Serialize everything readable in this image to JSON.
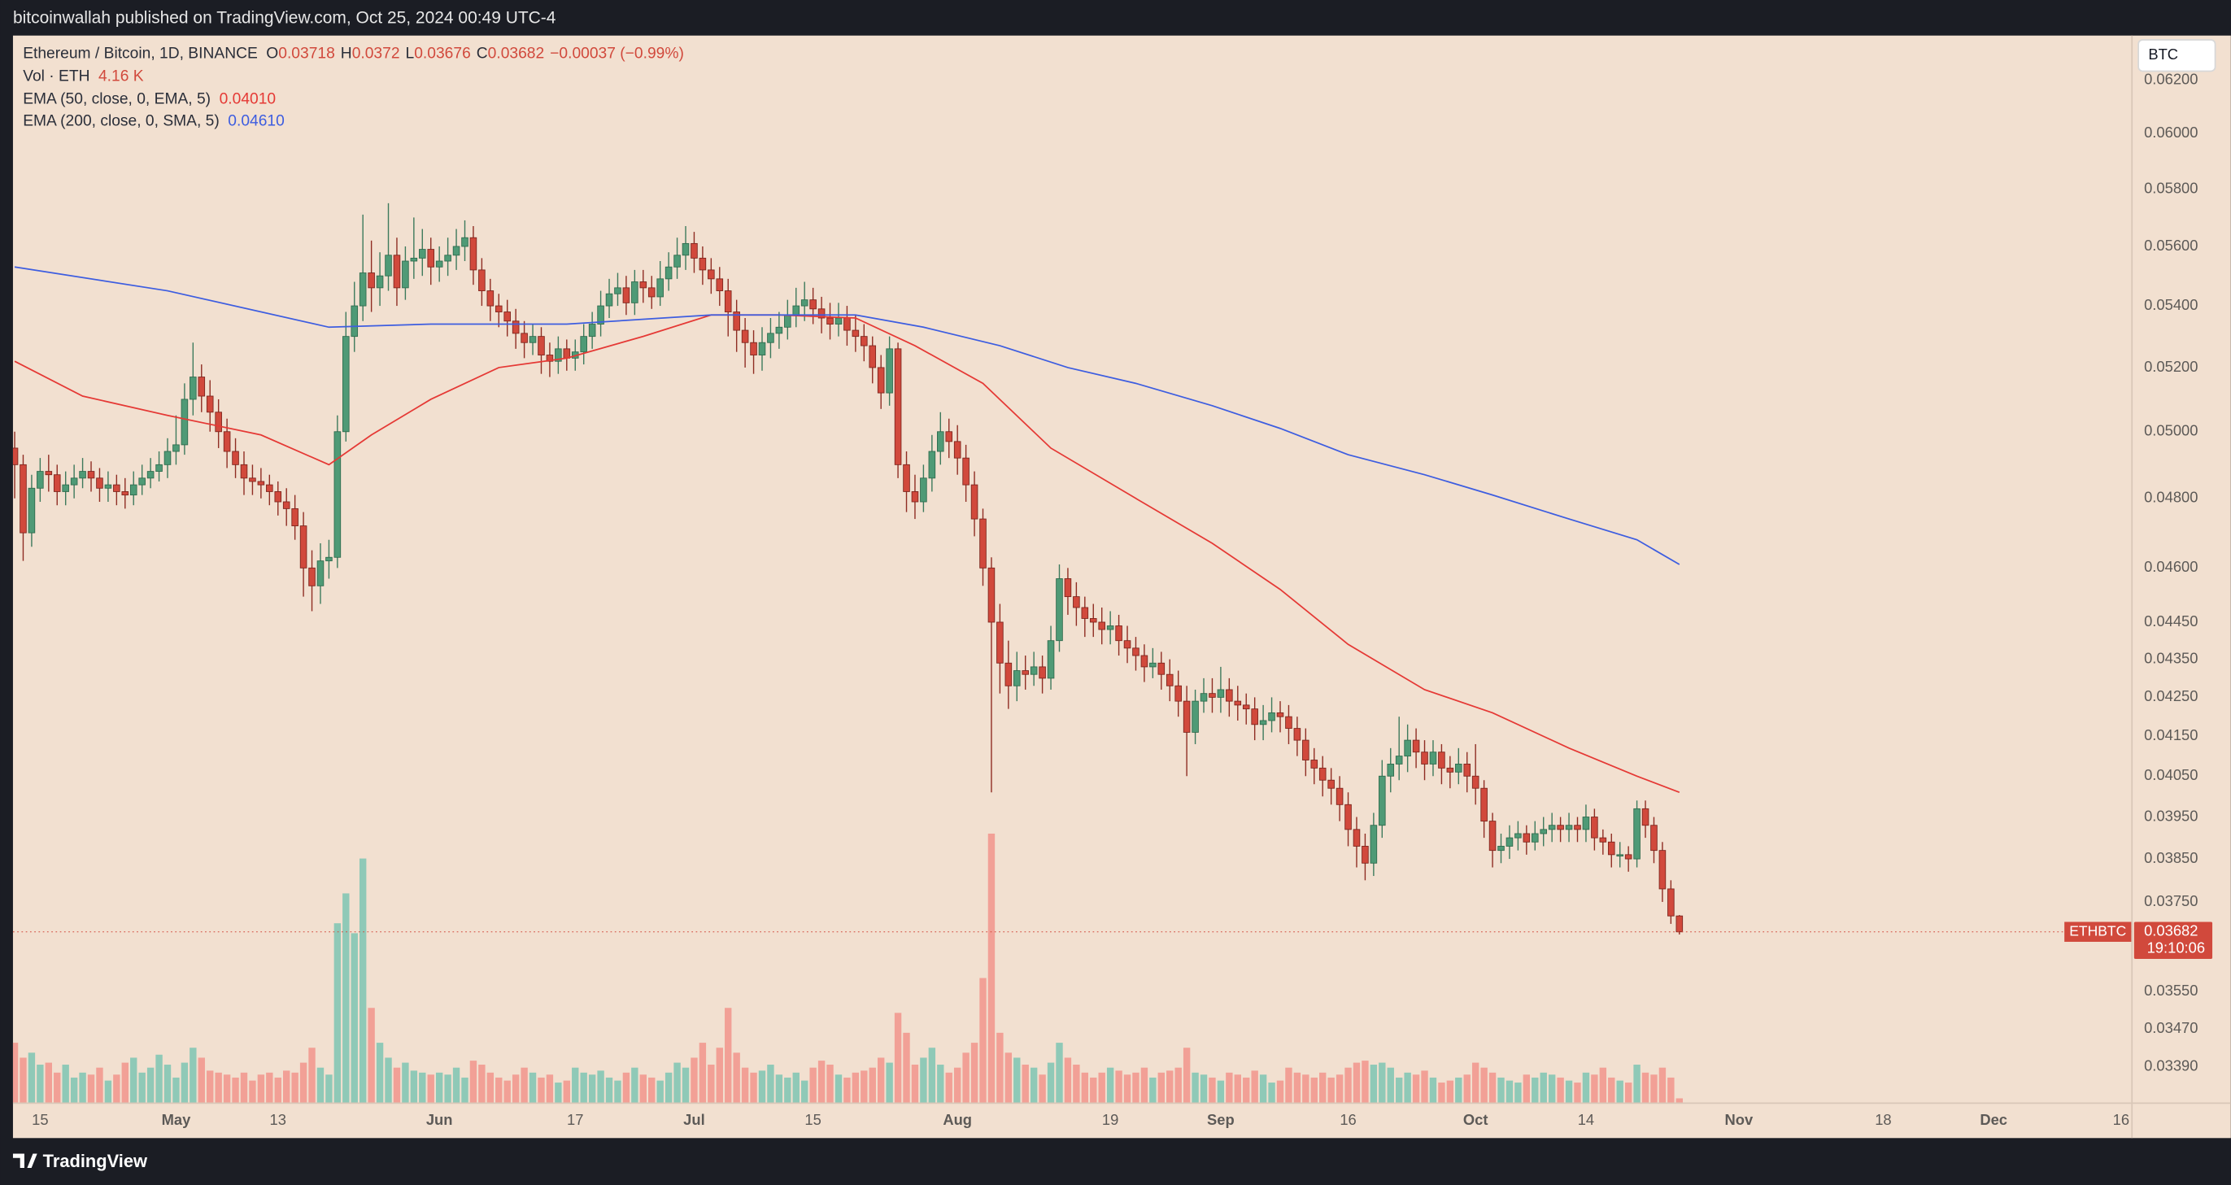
{
  "header": {
    "publisher": "bitcoinwallah published on TradingView.com, Oct 25, 2024 00:49 UTC-4"
  },
  "chart_data": {
    "type": "candlestick",
    "symbol_title": "Ethereum / Bitcoin, 1D, BINANCE",
    "ohlc_letters": [
      "O",
      "H",
      "L",
      "C"
    ],
    "change": "−0.00037 (−0.99%)",
    "volume_title": "Vol · ETH",
    "volume_label": "4.16 K",
    "currency": "BTC",
    "symbol": "ETHBTC",
    "countdown": "19:10:06",
    "up_color": "#4f9a76",
    "down_color": "#d1493c",
    "volume_up_color": "#8fc9b7",
    "volume_down_color": "#f2a096",
    "log_scale": true,
    "grid": false,
    "ylim": [
      0.03317,
      0.06371
    ],
    "xlim": [
      -0.2,
      249.2
    ],
    "yticks": [
      {
        "value": 0.062,
        "label": "0.06200"
      },
      {
        "value": 0.06,
        "label": "0.06000"
      },
      {
        "value": 0.058,
        "label": "0.05800"
      },
      {
        "value": 0.056,
        "label": "0.05600"
      },
      {
        "value": 0.054,
        "label": "0.05400"
      },
      {
        "value": 0.052,
        "label": "0.05200"
      },
      {
        "value": 0.05,
        "label": "0.05000"
      },
      {
        "value": 0.048,
        "label": "0.04800"
      },
      {
        "value": 0.046,
        "label": "0.04600"
      },
      {
        "value": 0.0445,
        "label": "0.04450"
      },
      {
        "value": 0.0435,
        "label": "0.04350"
      },
      {
        "value": 0.0425,
        "label": "0.04250"
      },
      {
        "value": 0.0415,
        "label": "0.04150"
      },
      {
        "value": 0.0405,
        "label": "0.04050"
      },
      {
        "value": 0.0395,
        "label": "0.03950"
      },
      {
        "value": 0.0385,
        "label": "0.03850"
      },
      {
        "value": 0.0375,
        "label": "0.03750"
      },
      {
        "value": 0.0355,
        "label": "0.03550"
      },
      {
        "value": 0.0347,
        "label": "0.03470"
      },
      {
        "value": 0.0339,
        "label": "0.03390"
      }
    ],
    "xticks": [
      {
        "value": 3,
        "label": "15"
      },
      {
        "value": 19,
        "label": "May"
      },
      {
        "value": 31,
        "label": "13"
      },
      {
        "value": 50,
        "label": "Jun"
      },
      {
        "value": 66,
        "label": "17"
      },
      {
        "value": 80,
        "label": "Jul"
      },
      {
        "value": 94,
        "label": "15"
      },
      {
        "value": 111,
        "label": "Aug"
      },
      {
        "value": 129,
        "label": "19"
      },
      {
        "value": 142,
        "label": "Sep"
      },
      {
        "value": 157,
        "label": "16"
      },
      {
        "value": 172,
        "label": "Oct"
      },
      {
        "value": 185,
        "label": "14"
      },
      {
        "value": 203,
        "label": "Nov"
      },
      {
        "value": 220,
        "label": "18"
      },
      {
        "value": 233,
        "label": "Dec"
      },
      {
        "value": 248,
        "label": "16"
      }
    ],
    "open": [
      0.0495,
      0.049,
      0.047,
      0.0483,
      0.0488,
      0.0487,
      0.0482,
      0.0484,
      0.0486,
      0.0488,
      0.0486,
      0.0483,
      0.0484,
      0.0482,
      0.0481,
      0.0484,
      0.0486,
      0.0488,
      0.049,
      0.0494,
      0.0496,
      0.051,
      0.0517,
      0.0511,
      0.0506,
      0.05,
      0.0494,
      0.049,
      0.0486,
      0.0485,
      0.0484,
      0.0482,
      0.0479,
      0.0477,
      0.0472,
      0.046,
      0.0455,
      0.0462,
      0.0463,
      0.05,
      0.053,
      0.054,
      0.0551,
      0.0546,
      0.055,
      0.0557,
      0.0546,
      0.0555,
      0.0556,
      0.0559,
      0.0553,
      0.0555,
      0.0557,
      0.056,
      0.0563,
      0.0552,
      0.0545,
      0.054,
      0.0538,
      0.0535,
      0.0531,
      0.0528,
      0.053,
      0.0524,
      0.0522,
      0.0526,
      0.0523,
      0.0525,
      0.053,
      0.0534,
      0.054,
      0.0544,
      0.0546,
      0.0541,
      0.0548,
      0.0546,
      0.0543,
      0.0549,
      0.0553,
      0.0557,
      0.0561,
      0.0556,
      0.0552,
      0.0549,
      0.0545,
      0.0538,
      0.0532,
      0.0528,
      0.0524,
      0.0528,
      0.0531,
      0.0533,
      0.0537,
      0.054,
      0.0542,
      0.0539,
      0.0536,
      0.0534,
      0.0536,
      0.0532,
      0.053,
      0.0527,
      0.052,
      0.0512,
      0.0526,
      0.049,
      0.0482,
      0.0479,
      0.0486,
      0.0494,
      0.05,
      0.0497,
      0.0492,
      0.0484,
      0.0474,
      0.046,
      0.0445,
      0.0434,
      0.0428,
      0.0432,
      0.0431,
      0.0433,
      0.043,
      0.044,
      0.0457,
      0.0452,
      0.0449,
      0.0446,
      0.0445,
      0.0443,
      0.0444,
      0.044,
      0.0438,
      0.0436,
      0.0433,
      0.0434,
      0.0431,
      0.0428,
      0.0424,
      0.0416,
      0.0424,
      0.0426,
      0.0425,
      0.0427,
      0.0424,
      0.0423,
      0.0422,
      0.0418,
      0.0419,
      0.0421,
      0.042,
      0.0417,
      0.0414,
      0.0409,
      0.0407,
      0.0404,
      0.0402,
      0.0398,
      0.0392,
      0.0388,
      0.0384,
      0.0393,
      0.0405,
      0.0408,
      0.041,
      0.0414,
      0.0411,
      0.0408,
      0.0411,
      0.0407,
      0.0406,
      0.0408,
      0.0405,
      0.0402,
      0.0394,
      0.0387,
      0.0388,
      0.039,
      0.0391,
      0.0389,
      0.0391,
      0.0392,
      0.0393,
      0.0392,
      0.0393,
      0.0392,
      0.0395,
      0.039,
      0.0389,
      0.0386,
      0.0386,
      0.0385,
      0.0397,
      0.0393,
      0.0387,
      0.0378,
      0.03718
    ],
    "high": [
      0.05,
      0.0493,
      0.0487,
      0.0492,
      0.0493,
      0.049,
      0.0488,
      0.049,
      0.0492,
      0.0491,
      0.0489,
      0.0488,
      0.0487,
      0.0486,
      0.0488,
      0.049,
      0.0492,
      0.0494,
      0.0498,
      0.0505,
      0.0515,
      0.0528,
      0.0521,
      0.0516,
      0.051,
      0.0504,
      0.0498,
      0.0494,
      0.049,
      0.0489,
      0.0487,
      0.0485,
      0.0483,
      0.0481,
      0.0476,
      0.0465,
      0.0467,
      0.0468,
      0.0505,
      0.0538,
      0.0548,
      0.0571,
      0.0562,
      0.0558,
      0.0575,
      0.0563,
      0.056,
      0.057,
      0.0566,
      0.0563,
      0.056,
      0.0563,
      0.0566,
      0.0569,
      0.0567,
      0.0556,
      0.0549,
      0.0544,
      0.0542,
      0.0539,
      0.0535,
      0.0534,
      0.0533,
      0.0528,
      0.053,
      0.0529,
      0.0529,
      0.0534,
      0.0538,
      0.0545,
      0.0549,
      0.0551,
      0.055,
      0.0552,
      0.0552,
      0.055,
      0.0555,
      0.0558,
      0.0563,
      0.0567,
      0.0565,
      0.056,
      0.0556,
      0.0553,
      0.0549,
      0.0542,
      0.0536,
      0.0532,
      0.0533,
      0.0536,
      0.0538,
      0.0542,
      0.0546,
      0.0548,
      0.0546,
      0.0543,
      0.0541,
      0.0541,
      0.054,
      0.0537,
      0.0534,
      0.053,
      0.0524,
      0.053,
      0.0528,
      0.0494,
      0.0487,
      0.049,
      0.0499,
      0.0506,
      0.0504,
      0.0502,
      0.0496,
      0.0488,
      0.0477,
      0.0463,
      0.045,
      0.044,
      0.0437,
      0.0436,
      0.0437,
      0.0436,
      0.0444,
      0.0461,
      0.046,
      0.0456,
      0.0452,
      0.045,
      0.0449,
      0.0448,
      0.0447,
      0.0444,
      0.0441,
      0.0439,
      0.0438,
      0.0437,
      0.0435,
      0.0432,
      0.0428,
      0.0427,
      0.043,
      0.043,
      0.0433,
      0.043,
      0.0428,
      0.0426,
      0.0425,
      0.0423,
      0.0425,
      0.0424,
      0.0423,
      0.042,
      0.0417,
      0.0412,
      0.041,
      0.0407,
      0.0405,
      0.0401,
      0.0395,
      0.0391,
      0.0396,
      0.0409,
      0.0412,
      0.042,
      0.0418,
      0.0417,
      0.0414,
      0.0414,
      0.0413,
      0.041,
      0.0412,
      0.0411,
      0.0413,
      0.0404,
      0.0396,
      0.0391,
      0.0393,
      0.0394,
      0.0393,
      0.0394,
      0.0395,
      0.0396,
      0.0395,
      0.0396,
      0.0395,
      0.0398,
      0.0397,
      0.0392,
      0.0391,
      0.0389,
      0.0388,
      0.0399,
      0.0399,
      0.0395,
      0.0389,
      0.038,
      0.0372
    ],
    "low": [
      0.048,
      0.0462,
      0.0466,
      0.0479,
      0.0482,
      0.0478,
      0.0478,
      0.048,
      0.0483,
      0.0482,
      0.0479,
      0.0479,
      0.0478,
      0.0477,
      0.0478,
      0.0481,
      0.0483,
      0.0485,
      0.0486,
      0.049,
      0.0493,
      0.0505,
      0.0506,
      0.05,
      0.0495,
      0.0489,
      0.0486,
      0.0481,
      0.0481,
      0.048,
      0.0478,
      0.0475,
      0.0472,
      0.0468,
      0.0452,
      0.0448,
      0.045,
      0.0457,
      0.046,
      0.0497,
      0.0525,
      0.0535,
      0.0538,
      0.054,
      0.0545,
      0.054,
      0.0542,
      0.0549,
      0.055,
      0.0547,
      0.0548,
      0.055,
      0.0552,
      0.0555,
      0.0547,
      0.054,
      0.0535,
      0.0533,
      0.053,
      0.0526,
      0.0523,
      0.0524,
      0.0518,
      0.0517,
      0.0518,
      0.0519,
      0.0519,
      0.0521,
      0.0526,
      0.053,
      0.0536,
      0.054,
      0.0537,
      0.0537,
      0.0541,
      0.0539,
      0.054,
      0.0545,
      0.0549,
      0.0552,
      0.0551,
      0.0547,
      0.0544,
      0.054,
      0.053,
      0.0525,
      0.052,
      0.0518,
      0.0519,
      0.0523,
      0.0526,
      0.0529,
      0.0533,
      0.0535,
      0.0534,
      0.0531,
      0.0529,
      0.053,
      0.0527,
      0.0525,
      0.0522,
      0.0515,
      0.0507,
      0.0508,
      0.0486,
      0.0476,
      0.0474,
      0.0476,
      0.0482,
      0.049,
      0.0492,
      0.0487,
      0.0479,
      0.0469,
      0.0455,
      0.0401,
      0.0426,
      0.0422,
      0.0424,
      0.0427,
      0.0428,
      0.0426,
      0.0427,
      0.0437,
      0.0447,
      0.0444,
      0.0441,
      0.0441,
      0.0439,
      0.0439,
      0.0436,
      0.0434,
      0.0432,
      0.0429,
      0.043,
      0.0427,
      0.0424,
      0.042,
      0.0405,
      0.0413,
      0.0421,
      0.0421,
      0.0421,
      0.042,
      0.0419,
      0.0418,
      0.0414,
      0.0414,
      0.0416,
      0.0416,
      0.0413,
      0.041,
      0.0405,
      0.0403,
      0.04,
      0.0398,
      0.0394,
      0.0388,
      0.0383,
      0.038,
      0.0381,
      0.039,
      0.0401,
      0.0404,
      0.0406,
      0.0407,
      0.0404,
      0.0405,
      0.0403,
      0.0402,
      0.0403,
      0.0401,
      0.0398,
      0.039,
      0.0383,
      0.0384,
      0.0385,
      0.0387,
      0.0386,
      0.0387,
      0.0388,
      0.0389,
      0.0389,
      0.0389,
      0.0389,
      0.0389,
      0.0387,
      0.0386,
      0.0383,
      0.0383,
      0.0382,
      0.0383,
      0.039,
      0.0384,
      0.0375,
      0.037,
      0.03676
    ],
    "close": [
      0.049,
      0.047,
      0.0483,
      0.0488,
      0.0487,
      0.0482,
      0.0484,
      0.0486,
      0.0488,
      0.0486,
      0.0483,
      0.0484,
      0.0482,
      0.0481,
      0.0484,
      0.0486,
      0.0488,
      0.049,
      0.0494,
      0.0496,
      0.051,
      0.0517,
      0.0511,
      0.0506,
      0.05,
      0.0494,
      0.049,
      0.0486,
      0.0485,
      0.0484,
      0.0482,
      0.0479,
      0.0477,
      0.0472,
      0.046,
      0.0455,
      0.0462,
      0.0463,
      0.05,
      0.053,
      0.054,
      0.0551,
      0.0546,
      0.055,
      0.0557,
      0.0546,
      0.0555,
      0.0556,
      0.0559,
      0.0553,
      0.0555,
      0.0557,
      0.056,
      0.0563,
      0.0552,
      0.0545,
      0.054,
      0.0538,
      0.0535,
      0.0531,
      0.0528,
      0.053,
      0.0524,
      0.0522,
      0.0526,
      0.0523,
      0.0525,
      0.053,
      0.0534,
      0.054,
      0.0544,
      0.0546,
      0.0541,
      0.0548,
      0.0546,
      0.0543,
      0.0549,
      0.0553,
      0.0557,
      0.0561,
      0.0556,
      0.0552,
      0.0549,
      0.0545,
      0.0538,
      0.0532,
      0.0528,
      0.0524,
      0.0528,
      0.0531,
      0.0533,
      0.0537,
      0.054,
      0.0542,
      0.0539,
      0.0536,
      0.0534,
      0.0536,
      0.0532,
      0.053,
      0.0527,
      0.052,
      0.0512,
      0.0526,
      0.049,
      0.0482,
      0.0479,
      0.0486,
      0.0494,
      0.05,
      0.0497,
      0.0492,
      0.0484,
      0.0474,
      0.046,
      0.0445,
      0.0434,
      0.0428,
      0.0432,
      0.0431,
      0.0433,
      0.043,
      0.044,
      0.0457,
      0.0452,
      0.0449,
      0.0446,
      0.0445,
      0.0443,
      0.0444,
      0.044,
      0.0438,
      0.0436,
      0.0433,
      0.0434,
      0.0431,
      0.0428,
      0.0424,
      0.0416,
      0.0424,
      0.0426,
      0.0425,
      0.0427,
      0.0424,
      0.0423,
      0.0422,
      0.0418,
      0.0419,
      0.0421,
      0.042,
      0.0417,
      0.0414,
      0.0409,
      0.0407,
      0.0404,
      0.0402,
      0.0398,
      0.0392,
      0.0388,
      0.0384,
      0.0393,
      0.0405,
      0.0408,
      0.041,
      0.0414,
      0.0411,
      0.0408,
      0.0411,
      0.0407,
      0.0406,
      0.0408,
      0.0405,
      0.0402,
      0.0394,
      0.0387,
      0.0388,
      0.039,
      0.0391,
      0.0389,
      0.0391,
      0.0392,
      0.0393,
      0.0392,
      0.0393,
      0.0392,
      0.0395,
      0.039,
      0.0389,
      0.0386,
      0.0386,
      0.0385,
      0.0397,
      0.0393,
      0.0387,
      0.0378,
      0.03718,
      0.03682
    ],
    "volume": [
      60,
      45,
      50,
      38,
      40,
      30,
      38,
      25,
      30,
      28,
      35,
      22,
      28,
      40,
      45,
      30,
      35,
      48,
      38,
      25,
      40,
      55,
      45,
      32,
      30,
      28,
      25,
      30,
      22,
      28,
      30,
      25,
      32,
      30,
      40,
      55,
      35,
      28,
      180,
      210,
      170,
      245,
      95,
      60,
      45,
      35,
      40,
      32,
      30,
      28,
      30,
      28,
      35,
      25,
      42,
      38,
      30,
      25,
      22,
      28,
      35,
      30,
      25,
      28,
      20,
      22,
      35,
      30,
      28,
      32,
      25,
      22,
      30,
      35,
      28,
      25,
      22,
      30,
      40,
      35,
      45,
      60,
      38,
      55,
      95,
      50,
      35,
      30,
      32,
      38,
      28,
      25,
      30,
      22,
      35,
      42,
      38,
      28,
      25,
      30,
      32,
      35,
      45,
      40,
      90,
      70,
      38,
      45,
      55,
      38,
      30,
      35,
      50,
      60,
      125,
      270,
      70,
      50,
      45,
      38,
      35,
      28,
      40,
      60,
      45,
      38,
      30,
      25,
      30,
      35,
      32,
      28,
      30,
      35,
      25,
      30,
      32,
      35,
      55,
      30,
      28,
      25,
      22,
      30,
      28,
      25,
      32,
      28,
      20,
      22,
      35,
      30,
      28,
      25,
      30,
      25,
      28,
      35,
      40,
      42,
      38,
      40,
      35,
      25,
      30,
      28,
      32,
      25,
      20,
      22,
      25,
      28,
      40,
      35,
      30,
      25,
      22,
      20,
      28,
      25,
      30,
      28,
      25,
      22,
      20,
      30,
      28,
      35,
      25,
      22,
      20,
      38,
      30,
      28,
      35,
      25,
      4.16
    ],
    "indicators": [
      {
        "name": "EMA (50, close, 0, EMA, 5)",
        "value_label": "0.04010",
        "color": "#e53935",
        "x": [
          0,
          8,
          18,
          29,
          37,
          42,
          49,
          57,
          65,
          74,
          82,
          90,
          99,
          106,
          114,
          122,
          132,
          141,
          149,
          157,
          166,
          174,
          183,
          191,
          196
        ],
        "values": [
          0.0522,
          0.0511,
          0.0505,
          0.0499,
          0.049,
          0.0499,
          0.051,
          0.052,
          0.0523,
          0.053,
          0.0537,
          0.0537,
          0.0536,
          0.0527,
          0.0515,
          0.0495,
          0.048,
          0.0467,
          0.0454,
          0.0439,
          0.0427,
          0.0421,
          0.0412,
          0.0405,
          0.0401
        ]
      },
      {
        "name": "EMA (200, close, 0, SMA, 5)",
        "value_label": "0.04610",
        "color": "#3d5de0",
        "x": [
          0,
          18,
          37,
          49,
          65,
          82,
          99,
          107,
          116,
          124,
          132,
          141,
          149,
          157,
          166,
          174,
          183,
          191,
          196
        ],
        "values": [
          0.0553,
          0.0545,
          0.0533,
          0.0534,
          0.0534,
          0.0537,
          0.0537,
          0.0533,
          0.0527,
          0.052,
          0.0515,
          0.0508,
          0.0501,
          0.0493,
          0.0487,
          0.0481,
          0.0474,
          0.0468,
          0.0461
        ]
      }
    ]
  },
  "footer": {
    "brand": "TradingView"
  }
}
